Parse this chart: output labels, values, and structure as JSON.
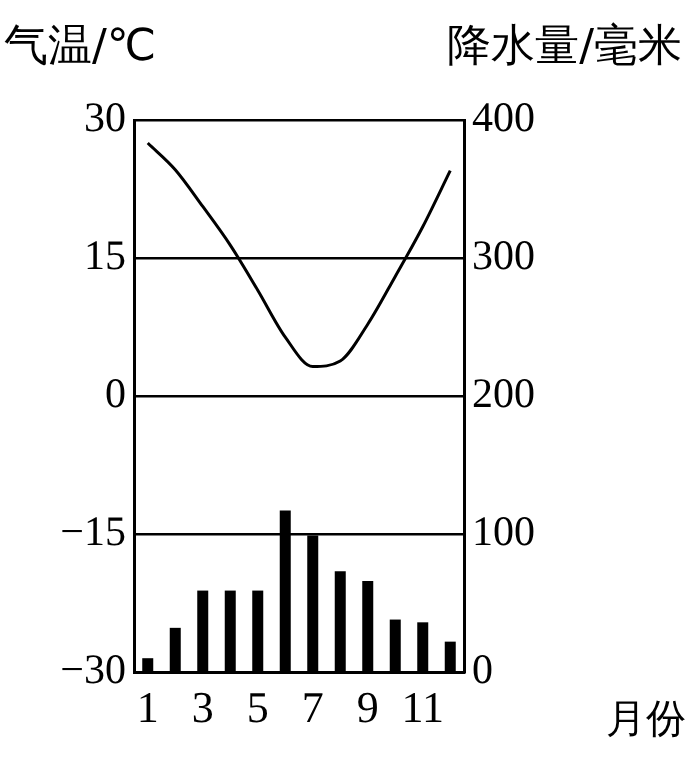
{
  "chart_data": {
    "type": "bar",
    "ylabel": "气温/℃",
    "y2label": "降水量/毫米",
    "xlabel": "月份",
    "categories": [
      "1",
      null,
      "3",
      null,
      "5",
      null,
      "7",
      null,
      "9",
      null,
      "11",
      null
    ],
    "series": [
      {
        "type": "line",
        "axis": "y",
        "color": "#000000",
        "values": [
          27.5,
          24.6,
          20.6,
          16.4,
          11.5,
          6.4,
          3.2,
          3.8,
          7.8,
          13,
          18.4,
          24.5
        ]
      },
      {
        "type": "bar",
        "axis": "y2",
        "color": "#000000",
        "values": [
          10,
          32,
          59,
          59,
          59,
          117,
          99,
          73,
          66,
          38,
          36,
          22
        ]
      }
    ],
    "ylim": [
      -30,
      30
    ],
    "yticks": [
      {
        "value": -30,
        "label": "−30"
      },
      {
        "value": -15,
        "label": "−15"
      },
      0,
      15,
      30
    ],
    "y2lim": [
      0,
      400
    ],
    "y2ticks": [
      0,
      100,
      200,
      300,
      400
    ],
    "grid": "y",
    "marker": "none",
    "line_style": "solid",
    "legend": false
  }
}
